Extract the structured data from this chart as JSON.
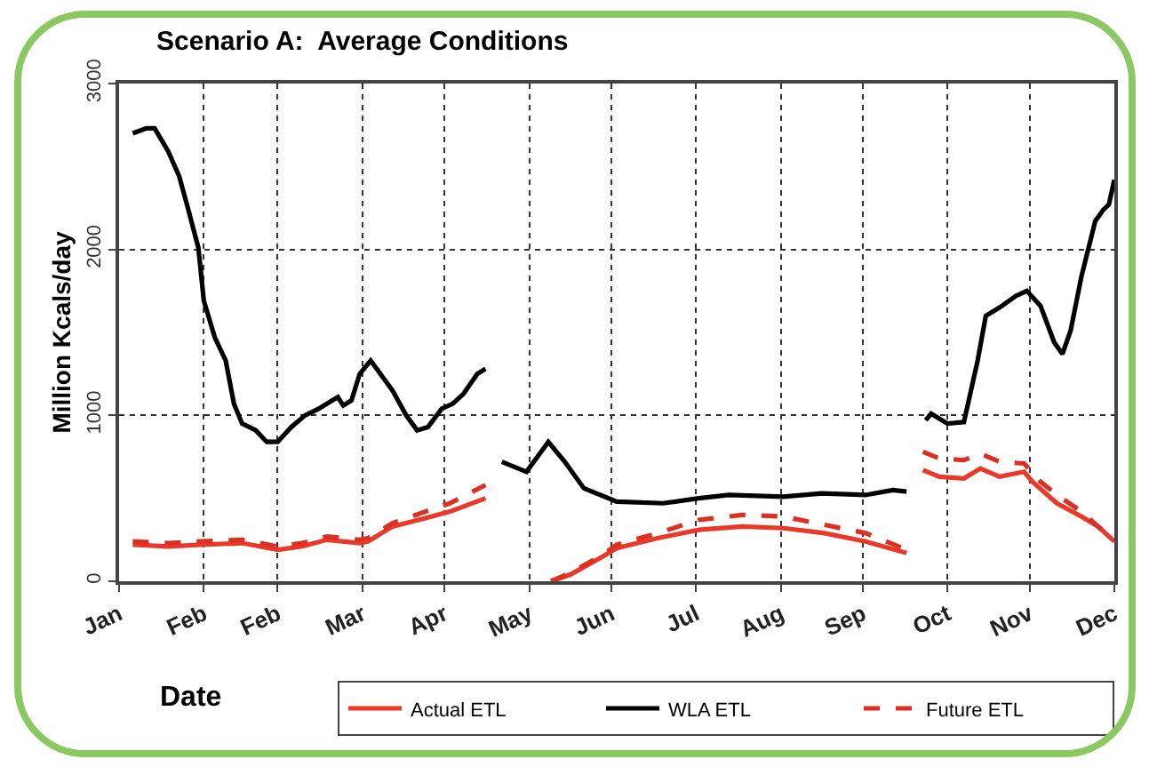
{
  "chart_data": {
    "type": "line",
    "title": "Scenario A:  Average Conditions",
    "xlabel": "Date",
    "ylabel": "Million Kcals/day",
    "xlim": [
      "--01-01",
      "--12-31"
    ],
    "xticks": [
      {
        "value": "--01-01",
        "label": "Jan"
      },
      {
        "value": "--02-01",
        "label": "Feb"
      },
      {
        "value": "--02-28",
        "label": "Feb"
      },
      {
        "value": "--03-31",
        "label": "Mar"
      },
      {
        "value": "--04-30",
        "label": "Apr"
      },
      {
        "value": "--05-31",
        "label": "May"
      },
      {
        "value": "--06-30",
        "label": "Jun"
      },
      {
        "value": "--07-31",
        "label": "Jul"
      },
      {
        "value": "--08-31",
        "label": "Aug"
      },
      {
        "value": "--09-30",
        "label": "Sep"
      },
      {
        "value": "--10-31",
        "label": "Oct"
      },
      {
        "value": "--11-30",
        "label": "Nov"
      },
      {
        "value": "--12-31",
        "label": "Dec"
      }
    ],
    "ylim": [
      0,
      3000
    ],
    "yticks": [
      0,
      1000,
      2000,
      3000
    ],
    "grid": true,
    "legend": "bottom",
    "line_style": "solid",
    "marker": "none",
    "series": [
      {
        "name": "Actual ETL",
        "color": "#e8392b",
        "x": [
          "--01-06",
          "--01-19",
          "--01-31",
          "--02-15",
          "--02-28",
          "--03-09",
          "--03-18",
          "--03-30",
          "--04-02",
          "--04-11",
          "--04-23",
          "--05-02",
          "--05-15",
          "--05-27",
          "--06-08",
          "--06-15",
          "--06-27",
          "--07-02",
          "--07-17",
          "--08-01",
          "--08-17",
          "--09-01",
          "--09-16",
          "--10-01",
          "--10-16",
          "--10-19",
          "--10-22",
          "--10-28",
          "--11-06",
          "--11-12",
          "--11-19",
          "--11-28",
          "--12-01",
          "--12-10",
          "--12-19",
          "--12-25",
          "--12-31"
        ],
        "values": [
          220,
          210,
          220,
          230,
          190,
          210,
          250,
          230,
          240,
          330,
          380,
          420,
          500,
          null,
          0,
          40,
          150,
          200,
          260,
          310,
          330,
          320,
          290,
          240,
          170,
          null,
          670,
          630,
          620,
          680,
          630,
          660,
          600,
          470,
          390,
          330,
          240
        ]
      },
      {
        "name": "WLA ETL",
        "color": "#000000",
        "x": [
          "--01-06",
          "--01-11",
          "--01-14",
          "--01-19",
          "--01-23",
          "--01-26",
          "--01-30",
          "--02-01",
          "--02-05",
          "--02-09",
          "--02-12",
          "--02-15",
          "--02-20",
          "--02-24",
          "--02-28",
          "--03-05",
          "--03-10",
          "--03-15",
          "--03-18",
          "--03-22",
          "--03-24",
          "--03-27",
          "--03-30",
          "--04-03",
          "--04-07",
          "--04-11",
          "--04-16",
          "--04-20",
          "--04-24",
          "--04-29",
          "--05-03",
          "--05-07",
          "--05-12",
          "--05-15",
          "--05-19",
          "--05-21",
          "--05-30",
          "--06-07",
          "--06-13",
          "--06-20",
          "--07-02",
          "--07-19",
          "--08-01",
          "--08-12",
          "--09-01",
          "--09-15",
          "--10-01",
          "--10-11",
          "--10-16",
          "--10-19",
          "--10-23",
          "--10-25",
          "--10-31",
          "--11-06",
          "--11-11",
          "--11-14",
          "--11-19",
          "--11-25",
          "--11-29",
          "--12-04",
          "--12-09",
          "--12-12",
          "--12-15",
          "--12-19",
          "--12-24",
          "--12-27",
          "--12-29",
          "--12-31"
        ],
        "values": [
          2700,
          2730,
          2730,
          2590,
          2440,
          2260,
          2010,
          1690,
          1470,
          1330,
          1070,
          950,
          910,
          840,
          840,
          930,
          1000,
          1040,
          1070,
          1110,
          1060,
          1090,
          1250,
          1330,
          1240,
          1150,
          1000,
          910,
          930,
          1040,
          1070,
          1130,
          1250,
          1280,
          null,
          720,
          660,
          840,
          720,
          560,
          480,
          470,
          500,
          520,
          510,
          530,
          520,
          550,
          540,
          null,
          970,
          1010,
          950,
          960,
          1330,
          1600,
          1650,
          1720,
          1750,
          1660,
          1440,
          1370,
          1510,
          1840,
          2170,
          2240,
          2270,
          2420
        ]
      },
      {
        "name": "Future ETL",
        "color": "#dc3022",
        "line_style": "dashed",
        "x": [
          "--01-06",
          "--01-19",
          "--01-31",
          "--02-15",
          "--02-28",
          "--03-09",
          "--03-18",
          "--03-30",
          "--04-02",
          "--04-11",
          "--04-23",
          "--05-02",
          "--05-15",
          "--05-27",
          "--06-08",
          "--06-15",
          "--06-27",
          "--07-02",
          "--07-17",
          "--08-01",
          "--08-17",
          "--09-01",
          "--09-16",
          "--10-01",
          "--10-16",
          "--10-19",
          "--10-22",
          "--10-28",
          "--11-06",
          "--11-12",
          "--11-19",
          "--11-28",
          "--12-04",
          "--12-10",
          "--12-19",
          "--12-25",
          "--12-31"
        ],
        "values": [
          240,
          230,
          240,
          250,
          210,
          230,
          270,
          250,
          260,
          350,
          420,
          470,
          580,
          null,
          0,
          50,
          160,
          220,
          290,
          370,
          400,
          390,
          340,
          290,
          190,
          null,
          780,
          740,
          730,
          770,
          720,
          710,
          600,
          520,
          420,
          330,
          250
        ]
      }
    ]
  }
}
